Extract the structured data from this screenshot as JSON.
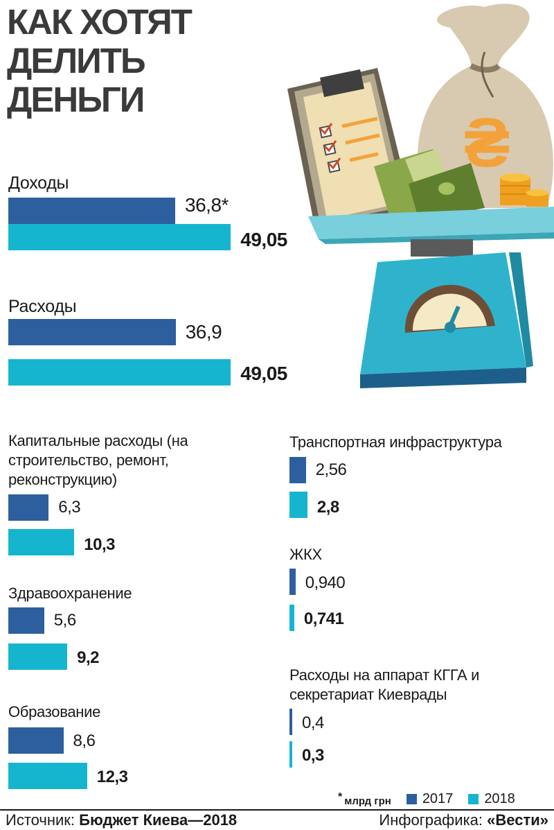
{
  "title_lines": [
    "КАК ХОТЯТ",
    "ДЕЛИТЬ",
    "ДЕНЬГИ"
  ],
  "colors": {
    "2017": "#2d5f9e",
    "2018": "#16b5cf"
  },
  "chart_data": {
    "type": "bar",
    "orientation": "horizontal",
    "unit": "млрд грн",
    "unit_marker": "*",
    "legend": [
      "2017",
      "2018"
    ],
    "groups": [
      {
        "label": "Доходы",
        "values": [
          36.8,
          49.05
        ],
        "labels": [
          "36,8*",
          "49,05"
        ]
      },
      {
        "label": "Расходы",
        "values": [
          36.9,
          49.05
        ],
        "labels": [
          "36,9",
          "49,05"
        ]
      },
      {
        "label": "Капитальные расходы (на строительство, ремонт, реконструкцию)",
        "values": [
          6.3,
          10.3
        ],
        "labels": [
          "6,3",
          "10,3"
        ]
      },
      {
        "label": "Здравоохранение",
        "values": [
          5.6,
          9.2
        ],
        "labels": [
          "5,6",
          "9,2"
        ]
      },
      {
        "label": "Образование",
        "values": [
          8.6,
          12.3
        ],
        "labels": [
          "8,6",
          "12,3"
        ]
      },
      {
        "label": "Транспортная инфраструктура",
        "values": [
          2.56,
          2.8
        ],
        "labels": [
          "2,56",
          "2,8"
        ]
      },
      {
        "label": "ЖКХ",
        "values": [
          0.94,
          0.741
        ],
        "labels": [
          "0,940",
          "0,741"
        ]
      },
      {
        "label": "Расходы на аппарат КГГА и секретариат Киеврады",
        "values": [
          0.4,
          0.3
        ],
        "labels": [
          "0,4",
          "0,3"
        ]
      }
    ]
  },
  "legend": {
    "unit_mark": "*",
    "unit": "млрд грн",
    "y2017": "2017",
    "y2018": "2018"
  },
  "footer": {
    "source_label": "Источник:",
    "source_value": "Бюджет Киева—2018",
    "credit_label": "Инфографика:",
    "credit_value": "«Вести»"
  },
  "illustration": {
    "currency_symbol": "₴"
  }
}
